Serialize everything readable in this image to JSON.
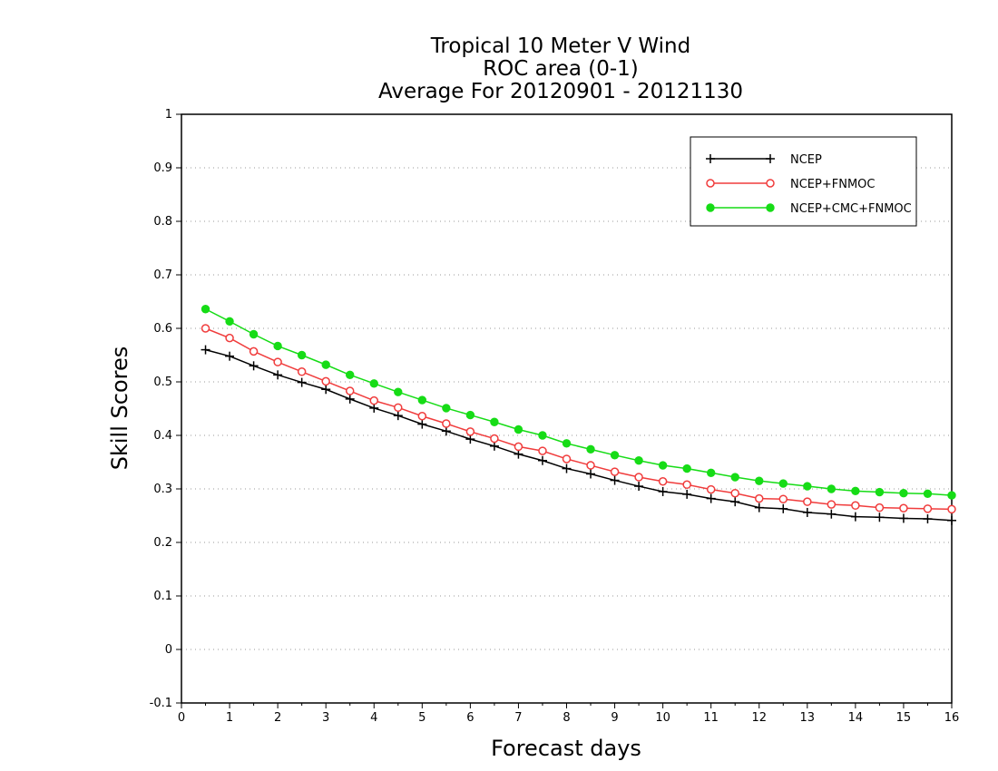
{
  "chart_data": {
    "type": "line",
    "title_lines": [
      "Tropical 10 Meter V Wind",
      "ROC area (0-1)",
      "Average For 20120901 - 20121130"
    ],
    "xlabel": "Forecast days",
    "ylabel": "Skill Scores",
    "xlim": [
      0,
      16
    ],
    "ylim": [
      -0.1,
      1
    ],
    "x_ticks": [
      "0",
      "1",
      "2",
      "3",
      "4",
      "5",
      "6",
      "7",
      "8",
      "9",
      "10",
      "11",
      "12",
      "13",
      "14",
      "15",
      "16"
    ],
    "y_ticks": [
      "-0.1",
      "0",
      "0.1",
      "0.2",
      "0.3",
      "0.4",
      "0.5",
      "0.6",
      "0.7",
      "0.8",
      "0.9",
      "1"
    ],
    "grid": "horizontal-dotted",
    "legend_position": "top-right",
    "x": [
      0.5,
      1,
      1.5,
      2,
      2.5,
      3,
      3.5,
      4,
      4.5,
      5,
      5.5,
      6,
      6.5,
      7,
      7.5,
      8,
      8.5,
      9,
      9.5,
      10,
      10.5,
      11,
      11.5,
      12,
      12.5,
      13,
      13.5,
      14,
      14.5,
      15,
      15.5,
      16
    ],
    "series": [
      {
        "name": "NCEP",
        "color": "#000000",
        "marker": "plus",
        "values": [
          0.56,
          0.548,
          0.53,
          0.513,
          0.499,
          0.486,
          0.468,
          0.451,
          0.437,
          0.421,
          0.408,
          0.393,
          0.38,
          0.365,
          0.353,
          0.338,
          0.328,
          0.316,
          0.305,
          0.295,
          0.29,
          0.282,
          0.276,
          0.265,
          0.263,
          0.256,
          0.253,
          0.248,
          0.247,
          0.245,
          0.244,
          0.241
        ]
      },
      {
        "name": "NCEP+FNMOC",
        "color": "#f03c3c",
        "marker": "open-circle",
        "values": [
          0.6,
          0.582,
          0.557,
          0.537,
          0.519,
          0.501,
          0.483,
          0.465,
          0.452,
          0.436,
          0.422,
          0.407,
          0.394,
          0.379,
          0.371,
          0.356,
          0.344,
          0.332,
          0.322,
          0.314,
          0.308,
          0.299,
          0.292,
          0.282,
          0.281,
          0.276,
          0.271,
          0.269,
          0.265,
          0.264,
          0.263,
          0.262
        ]
      },
      {
        "name": "NCEP+CMC+FNMOC",
        "color": "#16dc16",
        "marker": "filled-circle",
        "values": [
          0.636,
          0.613,
          0.589,
          0.567,
          0.55,
          0.532,
          0.513,
          0.497,
          0.481,
          0.466,
          0.451,
          0.438,
          0.425,
          0.411,
          0.4,
          0.385,
          0.374,
          0.363,
          0.353,
          0.344,
          0.338,
          0.33,
          0.322,
          0.315,
          0.31,
          0.305,
          0.3,
          0.296,
          0.294,
          0.292,
          0.291,
          0.288
        ]
      }
    ]
  }
}
